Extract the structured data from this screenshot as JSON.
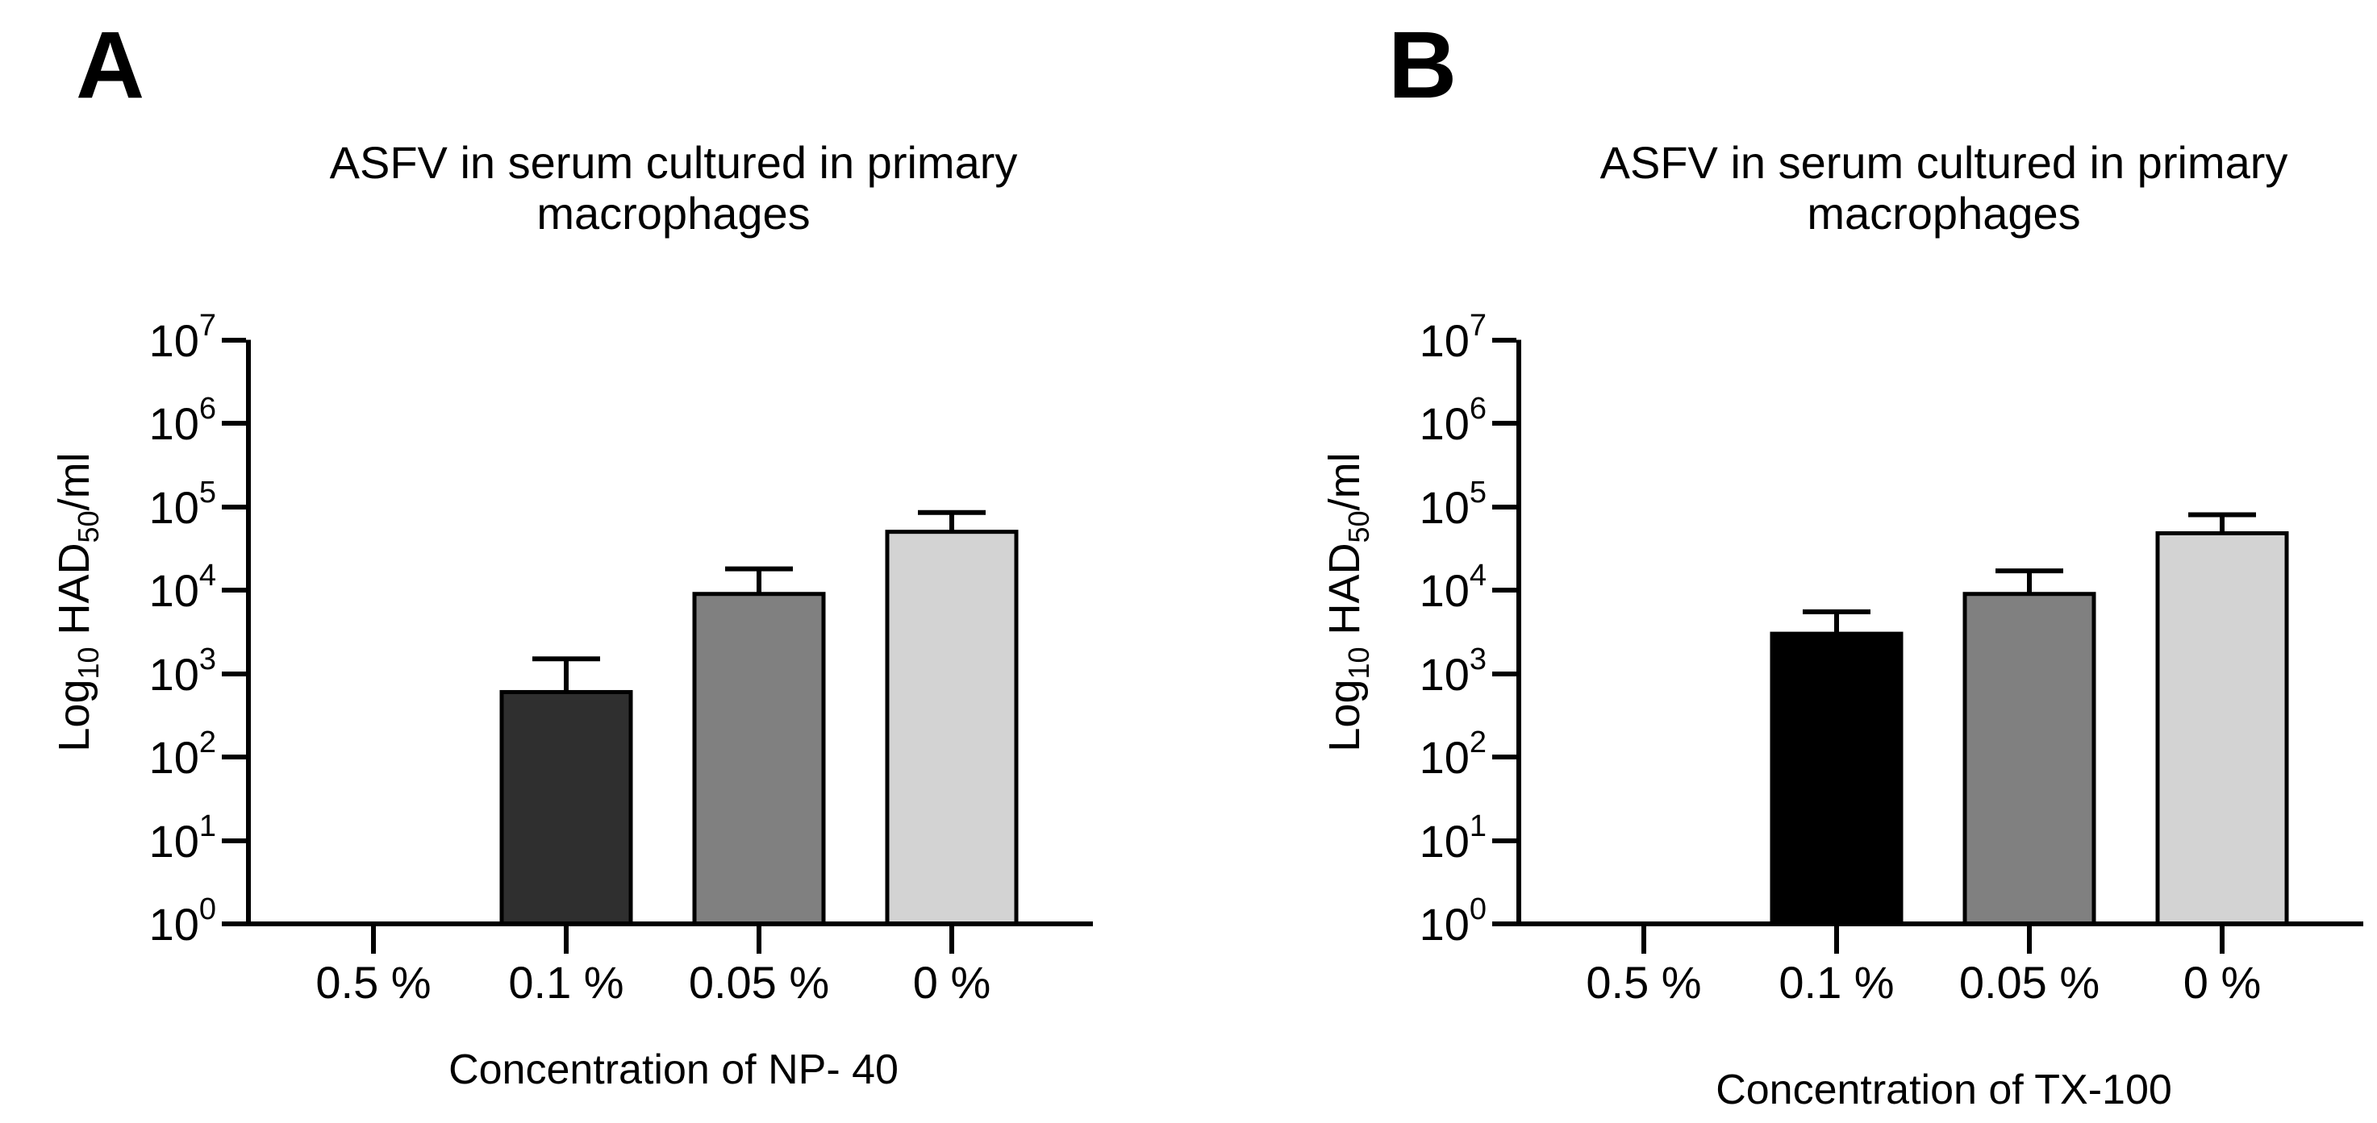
{
  "figure": {
    "background_color": "#ffffff",
    "axis_color": "#000000",
    "text_color": "#000000"
  },
  "panels": [
    {
      "label": "A"
    },
    {
      "label": "B"
    }
  ],
  "chart_data": [
    {
      "type": "bar",
      "panel": "A",
      "title": "ASFV in serum cultured in primary macrophages",
      "title_lines": [
        "ASFV in serum cultured in primary",
        "macrophages"
      ],
      "xlabel": "Concentration of NP- 40",
      "ylabel": "Log10 HAD50/ml",
      "ylabel_parts": {
        "base1": "Log",
        "sub1": "10",
        "base2": " HAD",
        "sub2": "50",
        "base3": "/ml"
      },
      "categories": [
        "0.5 %",
        "0.1 %",
        "0.05 %",
        "0 %"
      ],
      "values": [
        0,
        600,
        9000,
        50000
      ],
      "error_bar_tops": [
        null,
        1500,
        18000,
        85000
      ],
      "bar_fill_colors": [
        null,
        "#2f2f2f",
        "#808080",
        "#d3d3d3"
      ],
      "bar_edge_color": "#000000",
      "y_scale": "log10",
      "ylim": [
        1,
        10000000
      ],
      "y_tick_exponents": [
        0,
        1,
        2,
        3,
        4,
        5,
        6,
        7
      ],
      "y_tick_label_base": "10",
      "grid": false,
      "legend": "none"
    },
    {
      "type": "bar",
      "panel": "B",
      "title": "ASFV in serum cultured in primary macrophages",
      "title_lines": [
        "ASFV in serum cultured in primary",
        "macrophages"
      ],
      "xlabel": "Concentration of TX-100",
      "ylabel": "Log10 HAD50/ml",
      "ylabel_parts": {
        "base1": "Log",
        "sub1": "10",
        "base2": " HAD",
        "sub2": "50",
        "base3": "/ml"
      },
      "categories": [
        "0.5 %",
        "0.1 %",
        "0.05 %",
        "0 %"
      ],
      "values": [
        0,
        3000,
        9000,
        48000
      ],
      "error_bar_tops": [
        null,
        5500,
        17000,
        80000
      ],
      "bar_fill_colors": [
        null,
        "#000000",
        "#808080",
        "#d3d3d3"
      ],
      "bar_edge_color": "#000000",
      "y_scale": "log10",
      "ylim": [
        1,
        10000000
      ],
      "y_tick_exponents": [
        0,
        1,
        2,
        3,
        4,
        5,
        6,
        7
      ],
      "y_tick_label_base": "10",
      "grid": false,
      "legend": "none"
    }
  ]
}
